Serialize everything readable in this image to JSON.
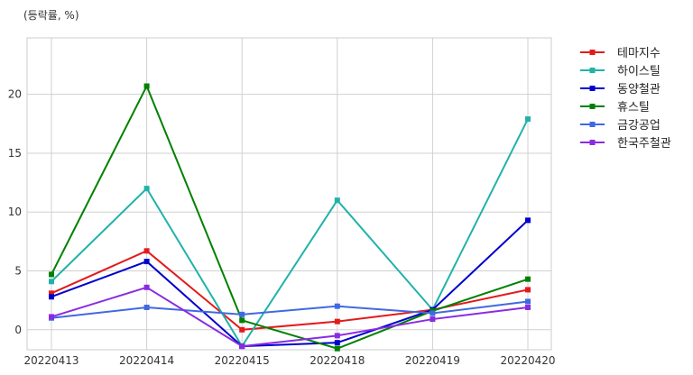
{
  "chart_data": {
    "type": "line",
    "unit_label": "(등락률, %)",
    "categories": [
      "20220413",
      "20220414",
      "20220415",
      "20220418",
      "20220419",
      "20220420"
    ],
    "ylim": [
      -1.7,
      24.8
    ],
    "yticks": [
      0,
      5,
      10,
      15,
      20
    ],
    "grid": true,
    "legend_placement": "outside-right-top",
    "series": [
      {
        "name": "테마지수",
        "color": "#e31a1c",
        "values": [
          3.1,
          6.7,
          0.0,
          0.7,
          1.7,
          3.4
        ]
      },
      {
        "name": "하이스틸",
        "color": "#20b2aa",
        "values": [
          4.1,
          12.0,
          -1.4,
          11.0,
          1.7,
          17.9
        ]
      },
      {
        "name": "동양철관",
        "color": "#0000cd",
        "values": [
          2.8,
          5.8,
          -1.4,
          -1.1,
          1.7,
          9.3
        ]
      },
      {
        "name": "휴스틸",
        "color": "#008000",
        "values": [
          4.7,
          20.7,
          0.8,
          -1.6,
          1.6,
          4.3
        ]
      },
      {
        "name": "금강공업",
        "color": "#4169e1",
        "values": [
          1.0,
          1.9,
          1.3,
          2.0,
          1.4,
          2.4
        ]
      },
      {
        "name": "한국주철관",
        "color": "#8a2be2",
        "values": [
          1.1,
          3.6,
          -1.4,
          -0.5,
          0.9,
          1.9
        ]
      }
    ]
  }
}
